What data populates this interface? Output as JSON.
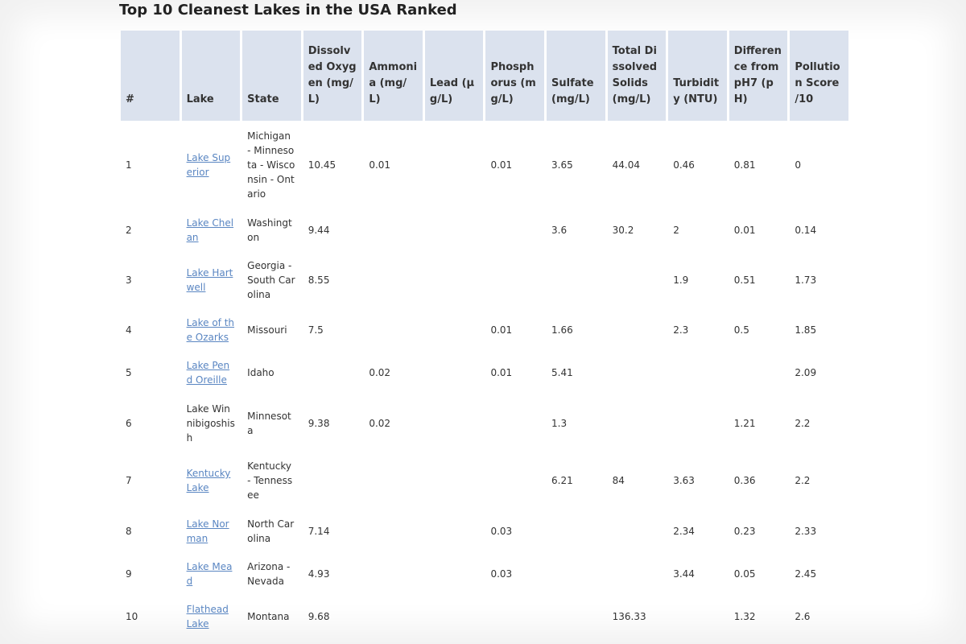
{
  "title": "Top 10 Cleanest Lakes in the USA Ranked",
  "table": {
    "headers": [
      "#",
      "Lake",
      "State",
      "Dissolved Oxygen (mg/L)",
      "Ammonia (mg/L)",
      "Lead (µg/L)",
      "Phosphorus (mg/L)",
      "Sulfate (mg/L)",
      "Total Dissolved Solids (mg/L)",
      "Turbidity (NTU)",
      "Difference from pH7 (pH)",
      "Pollution Score /10"
    ],
    "rows": [
      [
        "1",
        {
          "text": "Lake Superior",
          "link": true
        },
        "Michigan - Minnesota - Wisconsin - Ontario",
        "10.45",
        "0.01",
        null,
        "0.01",
        "3.65",
        "44.04",
        "0.46",
        "0.81",
        "0"
      ],
      [
        "2",
        {
          "text": "Lake Chelan",
          "link": true
        },
        "Washington",
        "9.44",
        null,
        null,
        null,
        "3.6",
        "30.2",
        "2",
        "0.01",
        "0.14"
      ],
      [
        "3",
        {
          "text": "Lake Hartwell",
          "link": true
        },
        "Georgia - South Carolina",
        "8.55",
        null,
        null,
        null,
        null,
        null,
        "1.9",
        "0.51",
        "1.73"
      ],
      [
        "4",
        {
          "text": "Lake of the Ozarks",
          "link": true
        },
        "Missouri",
        "7.5",
        null,
        null,
        "0.01",
        "1.66",
        null,
        "2.3",
        "0.5",
        "1.85"
      ],
      [
        "5",
        {
          "text": "Lake Pend Oreille",
          "link": true
        },
        "Idaho",
        null,
        "0.02",
        null,
        "0.01",
        "5.41",
        null,
        null,
        null,
        "2.09"
      ],
      [
        "6",
        {
          "text": "Lake Winnibigoshish",
          "link": false
        },
        "Minnesota",
        "9.38",
        "0.02",
        null,
        null,
        "1.3",
        null,
        null,
        "1.21",
        "2.2"
      ],
      [
        "7",
        {
          "text": "Kentucky Lake",
          "link": true
        },
        "Kentucky - Tennessee",
        null,
        null,
        null,
        null,
        "6.21",
        "84",
        "3.63",
        "0.36",
        "2.2"
      ],
      [
        "8",
        {
          "text": "Lake Norman",
          "link": true
        },
        "North Carolina",
        "7.14",
        null,
        null,
        "0.03",
        null,
        null,
        "2.34",
        "0.23",
        "2.33"
      ],
      [
        "9",
        {
          "text": "Lake Mead",
          "link": true
        },
        "Arizona - Nevada",
        "4.93",
        null,
        null,
        "0.03",
        null,
        null,
        "3.44",
        "0.05",
        "2.45"
      ],
      [
        "10",
        {
          "text": "Flathead Lake",
          "link": true
        },
        "Montana",
        "9.68",
        null,
        null,
        null,
        null,
        "136.33",
        null,
        "1.32",
        "2.6"
      ]
    ]
  }
}
